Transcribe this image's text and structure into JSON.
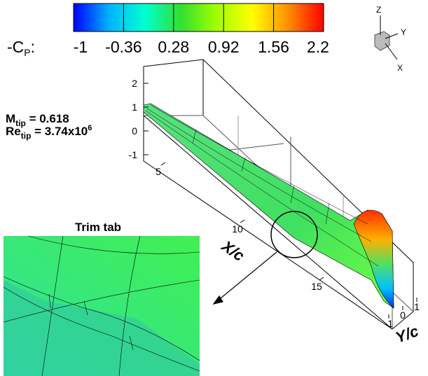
{
  "colorbar": {
    "label": "-C",
    "label_sub": "P",
    "label_suffix": ":",
    "range": [
      -1,
      2.2
    ],
    "ticks": [
      -1,
      -0.36,
      0.28,
      0.92,
      1.56,
      2.2
    ],
    "colors": [
      "#0000ff",
      "#00b4ff",
      "#00ffd0",
      "#30e030",
      "#a0ff00",
      "#ffff00",
      "#ff9000",
      "#ff0000"
    ]
  },
  "triad": {
    "z": "Z",
    "y": "Y",
    "x": "X"
  },
  "annotations": {
    "mach": {
      "text": "M",
      "sub": "tip",
      "rest": " = 0.618"
    },
    "reynolds": {
      "text": "Re",
      "sub": "tip",
      "rest": " = 3.74x10",
      "sup": "6"
    }
  },
  "axes": {
    "z": {
      "ticks": [
        2,
        1,
        0,
        -1
      ]
    },
    "x": {
      "label": "X/c",
      "ticks": [
        5,
        10,
        15
      ]
    },
    "y": {
      "label": "Y/c",
      "ticks": [
        -1,
        0,
        1
      ]
    }
  },
  "inset": {
    "title": "Trim tab"
  }
}
